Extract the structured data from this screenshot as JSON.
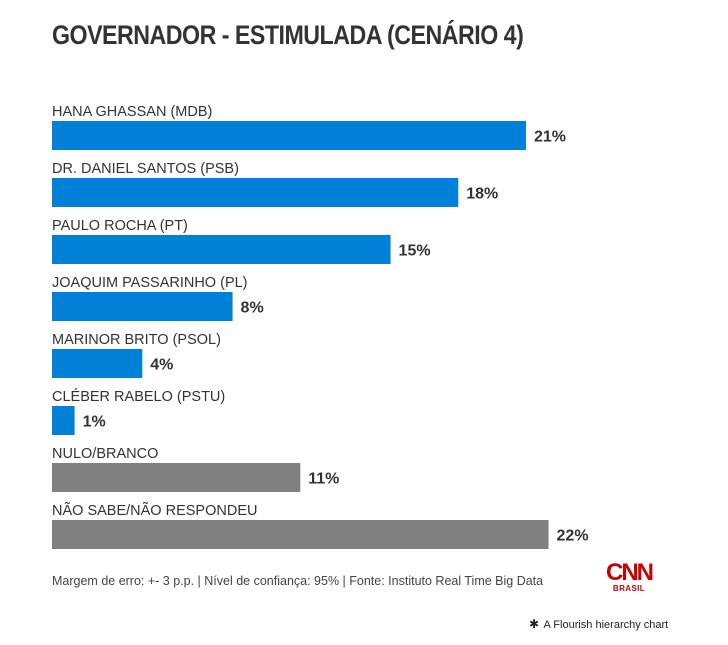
{
  "chart_data": {
    "type": "bar",
    "orientation": "horizontal",
    "title": "GOVERNADOR - ESTIMULADA (CENÁRIO 4)",
    "xlabel": "",
    "ylabel": "",
    "xlim": [
      0,
      22
    ],
    "grid": false,
    "value_suffix": "%",
    "categories": [
      "HANA GHASSAN (MDB)",
      "DR. DANIEL SANTOS (PSB)",
      "PAULO ROCHA (PT)",
      "JOAQUIM PASSARINHO (PL)",
      "MARINOR BRITO (PSOL)",
      "CLÉBER RABELO (PSTU)",
      "NULO/BRANCO",
      "NÃO SABE/NÃO RESPONDEU"
    ],
    "values": [
      21,
      18,
      15,
      8,
      4,
      1,
      11,
      22
    ],
    "value_labels": [
      "21%",
      "18%",
      "15%",
      "8%",
      "4%",
      "1%",
      "11%",
      "22%"
    ],
    "colors": [
      "#0080d6",
      "#0080d6",
      "#0080d6",
      "#0080d6",
      "#0080d6",
      "#0080d6",
      "#808080",
      "#808080"
    ]
  },
  "footer": {
    "note": "Margem de erro: +- 3 p.p. | Nível de confiança: 95% | Fonte: Instituto Real Time Big Data"
  },
  "logo": {
    "name": "CNN",
    "sub": "BRASIL",
    "color": "#cc0000"
  },
  "credit": {
    "icon": "✱",
    "text": "A Flourish hierarchy chart"
  }
}
